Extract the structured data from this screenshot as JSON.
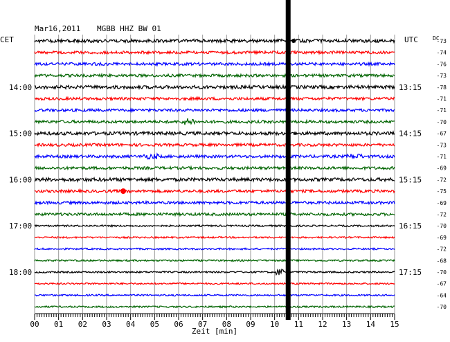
{
  "header": {
    "date": "Mar16,2011",
    "station": "MGBB HHZ BW 01",
    "left_zone": "CET",
    "right_zone": "UTC",
    "dc_label": "DC"
  },
  "chart_data": {
    "type": "line",
    "title": "Mar16,2011  MGBB HHZ BW 01",
    "xlabel": "Zeit [min]",
    "xlim": [
      0,
      15
    ],
    "x_ticks": [
      "00",
      "01",
      "02",
      "03",
      "04",
      "05",
      "06",
      "07",
      "08",
      "09",
      "10",
      "11",
      "12",
      "13",
      "14",
      "15"
    ],
    "trace_colors": [
      "#000000",
      "#ff0000",
      "#0000ff",
      "#006400"
    ],
    "left_time_labels": [
      {
        "row": 4,
        "label": "14:00"
      },
      {
        "row": 8,
        "label": "15:00"
      },
      {
        "row": 12,
        "label": "16:00"
      },
      {
        "row": 16,
        "label": "17:00"
      },
      {
        "row": 20,
        "label": "18:00"
      }
    ],
    "right_time_labels": [
      {
        "row": 4,
        "label": "13:15"
      },
      {
        "row": 8,
        "label": "14:15"
      },
      {
        "row": 12,
        "label": "15:15"
      },
      {
        "row": 16,
        "label": "16:15"
      },
      {
        "row": 20,
        "label": "17:15"
      }
    ],
    "dc_values": [
      "-73",
      "-74",
      "-76",
      "-73",
      "-78",
      "-71",
      "-71",
      "-70",
      "-67",
      "-73",
      "-71",
      "-69",
      "-72",
      "-75",
      "-69",
      "-72",
      "-70",
      "-69",
      "-72",
      "-68",
      "-70",
      "-67",
      "-64",
      "-70"
    ],
    "gap_minute": 10.55
  }
}
